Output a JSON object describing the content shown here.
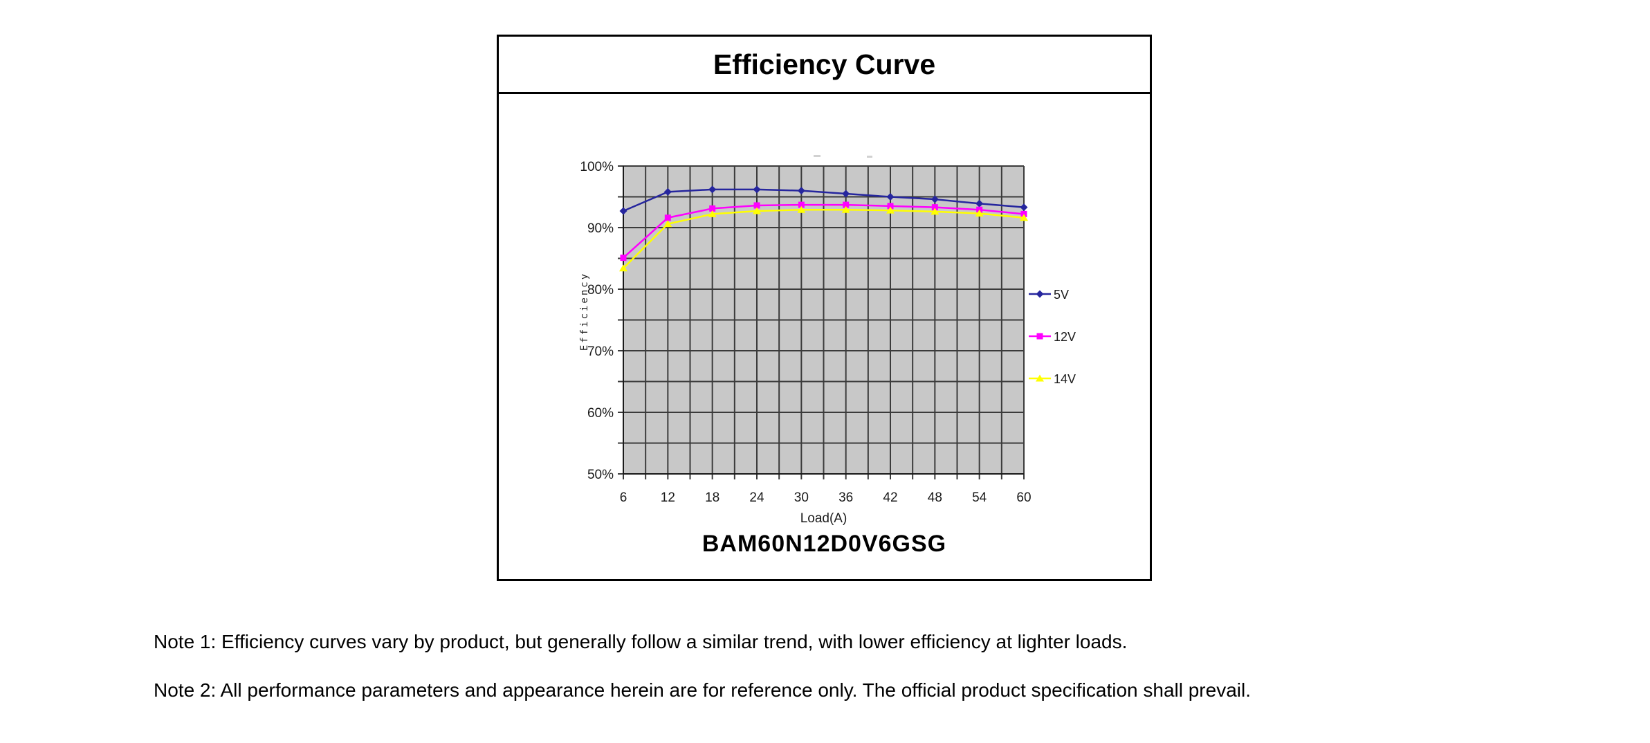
{
  "figure": {
    "title": "Efficiency Curve",
    "part_number": "BAM60N12D0V6GSG"
  },
  "notes": [
    "Note 1: Efficiency curves vary by product, but generally follow a similar trend, with lower efficiency at lighter loads.",
    "Note 2: All performance parameters and appearance herein are for reference only. The official product specification shall prevail."
  ],
  "chart_data": {
    "type": "line",
    "title": "Efficiency Curve",
    "xlabel": "Load(A)",
    "ylabel": "Efficiency",
    "x": [
      6,
      12,
      18,
      24,
      30,
      36,
      42,
      48,
      54,
      60
    ],
    "x_tick_labels": [
      "6",
      "12",
      "18",
      "24",
      "30",
      "36",
      "42",
      "48",
      "54",
      "60"
    ],
    "y_tick_labels": [
      "100%",
      "90%",
      "80%",
      "70%",
      "60%",
      "50%"
    ],
    "ylim": [
      50,
      100
    ],
    "y_gridline_step": 5,
    "x_gridline_step": 3,
    "grid": true,
    "legend_position": "right",
    "plot_bg_color": "#c8c8c8",
    "gridline_color": "#3b3b3b",
    "series": [
      {
        "name": "5V",
        "color": "#26269e",
        "marker": "diamond",
        "values": [
          92.7,
          95.8,
          96.2,
          96.2,
          96.0,
          95.5,
          95.0,
          94.6,
          93.9,
          93.3
        ]
      },
      {
        "name": "12V",
        "color": "#ff00ff",
        "marker": "square",
        "values": [
          85.1,
          91.6,
          93.1,
          93.6,
          93.7,
          93.7,
          93.5,
          93.3,
          92.9,
          92.2
        ]
      },
      {
        "name": "14V",
        "color": "#ffff00",
        "marker": "triangle",
        "values": [
          83.4,
          90.6,
          92.2,
          92.7,
          92.9,
          92.9,
          92.8,
          92.6,
          92.3,
          91.6
        ]
      }
    ]
  }
}
